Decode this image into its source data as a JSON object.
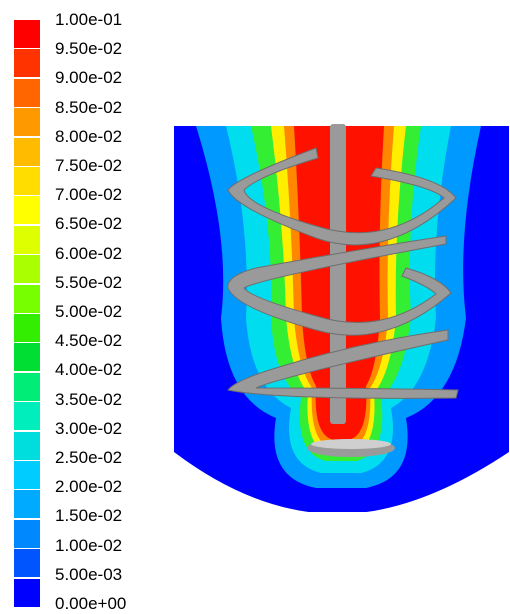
{
  "legend": {
    "labels": [
      "1.00e-01",
      "9.50e-02",
      "9.00e-02",
      "8.50e-02",
      "8.00e-02",
      "7.50e-02",
      "7.00e-02",
      "6.50e-02",
      "6.00e-02",
      "5.50e-02",
      "5.00e-02",
      "4.50e-02",
      "4.00e-02",
      "3.50e-02",
      "3.00e-02",
      "2.50e-02",
      "2.00e-02",
      "1.50e-02",
      "1.00e-02",
      "5.00e-03",
      "0.00e+00"
    ],
    "colors": [
      "#ff0000",
      "#ff3300",
      "#ff6600",
      "#ff9900",
      "#ffbb00",
      "#ffdd00",
      "#ffff00",
      "#ddff00",
      "#aaff00",
      "#77ff00",
      "#33ee00",
      "#00dd33",
      "#00ee77",
      "#00eebb",
      "#00dddd",
      "#00ccff",
      "#00aaff",
      "#0088ff",
      "#0055ff",
      "#0000ff"
    ]
  },
  "contour_plot": {
    "field_colors": {
      "background": "#0000ff",
      "red": "#ff1100",
      "orange": "#ff8800",
      "yellow": "#ffee00",
      "green": "#33ee33",
      "cyan": "#00ddee",
      "light_blue": "#0099ff"
    },
    "impeller_color": "#9a9a9a"
  }
}
